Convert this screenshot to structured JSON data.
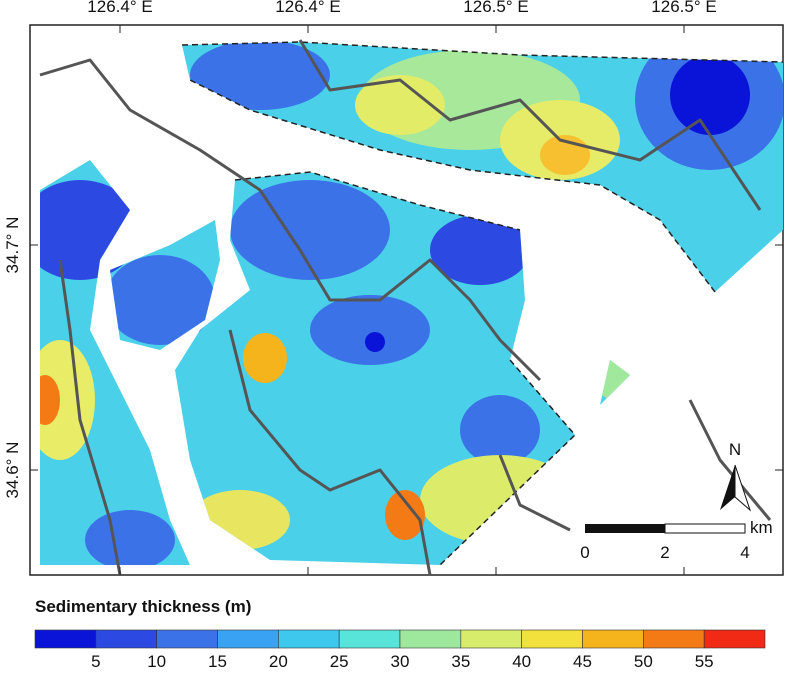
{
  "map": {
    "lon_labels": [
      "126.4° E",
      "126.4° E",
      "126.5° E",
      "126.5° E"
    ],
    "lat_labels": [
      "34.7° N",
      "34.6° N"
    ],
    "north": "N",
    "scale": {
      "labels": [
        "0",
        "2",
        "4"
      ],
      "unit": "km"
    }
  },
  "legend": {
    "title": "Sedimentary thickness (m)",
    "ticks": [
      5,
      10,
      15,
      20,
      25,
      30,
      35,
      40,
      45,
      50,
      55
    ],
    "colors": [
      "#0a14d8",
      "#2c4ae2",
      "#3c72e8",
      "#3aa2f2",
      "#3ec8ee",
      "#58e4d8",
      "#9ee89e",
      "#d8ec6c",
      "#f2e03c",
      "#f6b41c",
      "#f47a16",
      "#f02a14"
    ]
  }
}
